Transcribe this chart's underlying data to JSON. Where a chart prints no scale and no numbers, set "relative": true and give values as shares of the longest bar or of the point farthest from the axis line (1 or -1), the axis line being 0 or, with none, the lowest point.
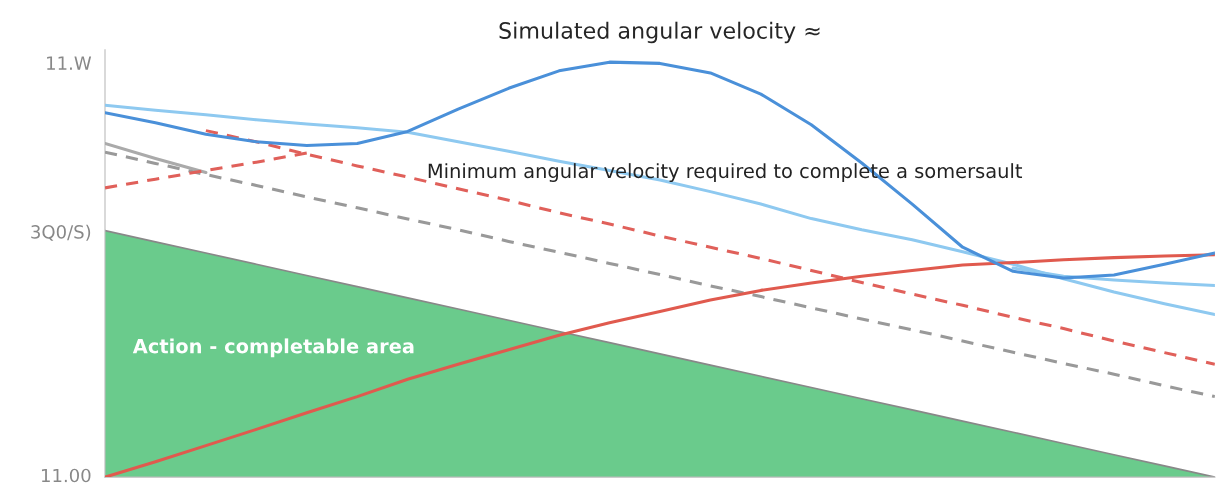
{
  "chart_data": {
    "type": "line",
    "title": "Simulated angular velocity ≈",
    "relative": true,
    "categories": [
      null,
      null,
      null,
      null,
      null,
      null,
      null,
      null,
      null,
      null,
      null,
      null,
      null,
      null,
      null,
      null,
      null,
      null,
      null,
      null,
      null,
      null,
      null
    ],
    "series": [
      {
        "type": "area",
        "color": "#6acb8c",
        "values": [
          0.594,
          0.567,
          0.54,
          0.513,
          0.486,
          0.459,
          0.432,
          0.405,
          0.378,
          0.351,
          0.324,
          0.297,
          0.27,
          0.243,
          0.216,
          0.189,
          0.162,
          0.135,
          0.108,
          0.081,
          0.054,
          0.027,
          0.0
        ]
      },
      {
        "color": "#8ec9f0",
        "line_style": "solid",
        "values": [
          0.896,
          0.884,
          0.873,
          0.861,
          0.851,
          0.842,
          0.831,
          0.808,
          0.785,
          0.761,
          0.739,
          0.716,
          0.688,
          0.658,
          0.623,
          0.596,
          0.572,
          0.543,
          0.513,
          0.478,
          0.446,
          0.418,
          0.392
        ]
      },
      {
        "color": "#8ec9f0",
        "line_style": "solid",
        "values": [
          null,
          null,
          null,
          null,
          null,
          null,
          null,
          null,
          null,
          null,
          null,
          null,
          null,
          null,
          null,
          null,
          null,
          null,
          0.504,
          0.484,
          0.475,
          0.468,
          0.462
        ]
      },
      {
        "color": "#aaaaaa",
        "line_style": "solid",
        "values": [
          0.804,
          0.768,
          0.734,
          null,
          null,
          null,
          null,
          null,
          null,
          null,
          null,
          null,
          null,
          null,
          null,
          null,
          null,
          null,
          null,
          null,
          null,
          null,
          null
        ]
      },
      {
        "color": "#999999",
        "line_style": "dashed",
        "values": [
          0.783,
          0.756,
          0.729,
          0.703,
          0.675,
          0.649,
          0.622,
          0.596,
          0.568,
          0.542,
          0.515,
          0.488,
          0.461,
          0.435,
          0.408,
          0.381,
          0.355,
          0.328,
          0.301,
          0.274,
          0.248,
          0.22,
          0.194
        ]
      },
      {
        "color": "#e0605a",
        "line_style": "dashed",
        "values": [
          0.697,
          0.718,
          0.739,
          0.759,
          0.781,
          null,
          null,
          null,
          null,
          null,
          null,
          null,
          null,
          null,
          null,
          null,
          null,
          null,
          null,
          null,
          null,
          null,
          null
        ]
      },
      {
        "color": "#e0605a",
        "line_style": "dashed",
        "values": [
          null,
          null,
          0.835,
          0.808,
          0.778,
          0.75,
          0.723,
          0.695,
          0.667,
          0.637,
          0.61,
          0.581,
          0.554,
          0.527,
          0.498,
          0.469,
          0.441,
          0.414,
          0.385,
          0.358,
          0.328,
          0.3,
          0.272
        ]
      },
      {
        "color": "#e05a4e",
        "line_style": "solid",
        "values": [
          0.0,
          0.037,
          0.076,
          0.115,
          0.155,
          0.194,
          0.236,
          0.272,
          0.307,
          0.342,
          0.372,
          0.399,
          0.427,
          0.45,
          0.468,
          0.484,
          0.498,
          0.511,
          0.517,
          0.524,
          0.529,
          0.533,
          0.536
        ]
      },
      {
        "color": "#4a90d9",
        "line_style": "solid",
        "values": [
          0.878,
          0.854,
          0.826,
          0.808,
          0.799,
          0.804,
          0.833,
          0.887,
          0.937,
          0.979,
          1.0,
          0.997,
          0.974,
          0.923,
          0.849,
          0.757,
          0.658,
          0.554,
          0.496,
          0.48,
          0.487,
          0.513,
          0.54
        ]
      }
    ],
    "legend": false,
    "annotations": [
      "Minimum angular velocity required to complete a somersault",
      "Action - completable area",
      "11.W",
      "3Q0/S)",
      "11.00"
    ]
  }
}
